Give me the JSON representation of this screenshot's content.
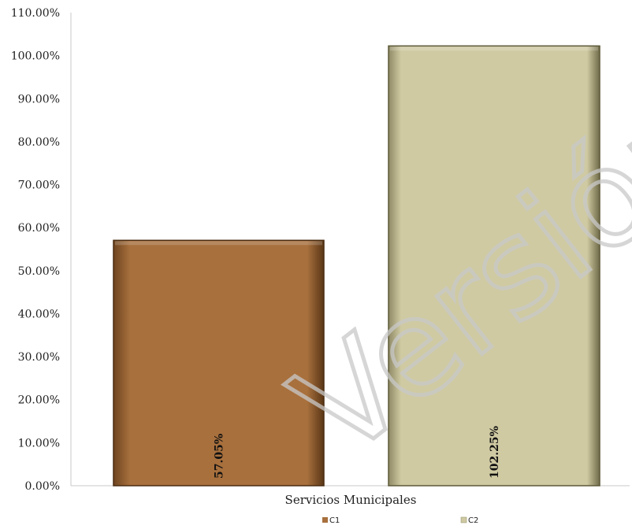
{
  "chart_data": {
    "type": "bar",
    "categories": [
      "Servicios Municipales"
    ],
    "series": [
      {
        "name": "C1",
        "values": [
          57.05
        ],
        "label": "57.05%",
        "color": "#a8703d"
      },
      {
        "name": "C2",
        "values": [
          102.25
        ],
        "label": "102.25%",
        "color": "#cfcaa2"
      }
    ],
    "ylim": [
      0,
      110
    ],
    "yticks": [
      "0.00%",
      "10.00%",
      "20.00%",
      "30.00%",
      "40.00%",
      "50.00%",
      "60.00%",
      "70.00%",
      "80.00%",
      "90.00%",
      "100.00%",
      "110.00%"
    ],
    "xlabel": "Servicios Municipales",
    "grid": false,
    "legend_position": "bottom",
    "watermark": "Versión Pública"
  }
}
